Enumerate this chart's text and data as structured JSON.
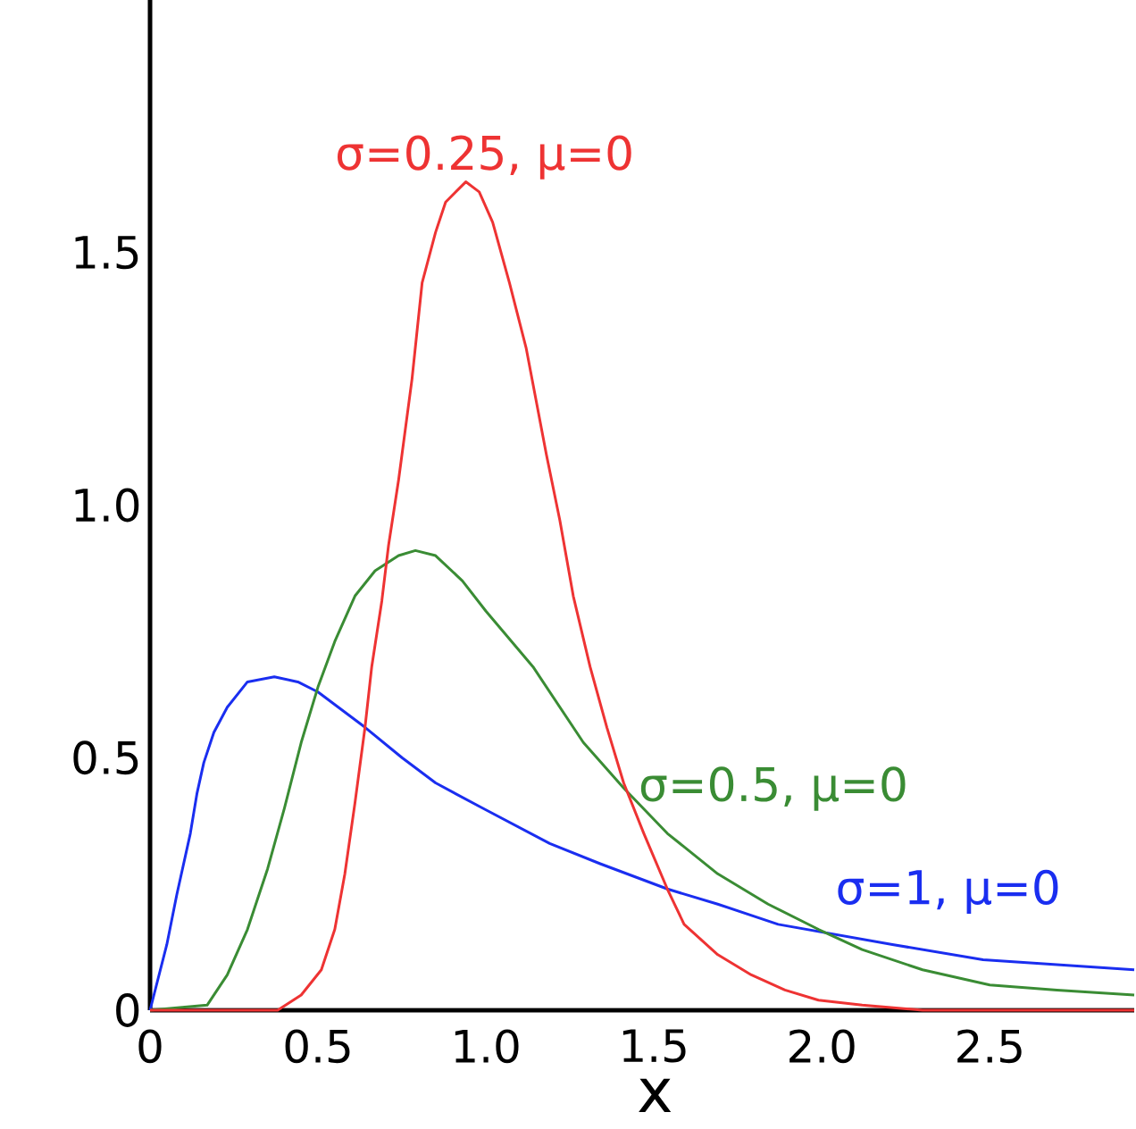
{
  "chart_data": {
    "type": "line",
    "xlabel": "x",
    "xlim": [
      0,
      2.93
    ],
    "ylim": [
      0,
      2.0
    ],
    "xticks": [
      0,
      0.5,
      {
        "value": 1,
        "label": "1.0"
      },
      1.5,
      {
        "value": 2,
        "label": "2.0"
      },
      2.5
    ],
    "yticks": [
      0,
      0.5,
      {
        "value": 1,
        "label": "1.0"
      },
      1.5
    ],
    "series": [
      {
        "name": "σ=0.25, μ=0",
        "color": "#ee3333",
        "x": [
          0,
          0.38,
          0.45,
          0.51,
          0.55,
          0.58,
          0.61,
          0.64,
          0.66,
          0.69,
          0.71,
          0.74,
          0.78,
          0.81,
          0.85,
          0.88,
          0.94,
          0.98,
          1.02,
          1.07,
          1.12,
          1.18,
          1.22,
          1.26,
          1.31,
          1.36,
          1.41,
          1.47,
          1.54,
          1.59,
          1.69,
          1.79,
          1.89,
          1.99,
          2.12,
          2.3,
          2.93
        ],
        "values": [
          0,
          0,
          0.03,
          0.08,
          0.16,
          0.27,
          0.41,
          0.56,
          0.68,
          0.81,
          0.92,
          1.05,
          1.25,
          1.44,
          1.54,
          1.6,
          1.64,
          1.62,
          1.56,
          1.44,
          1.31,
          1.1,
          0.97,
          0.82,
          0.68,
          0.56,
          0.45,
          0.35,
          0.24,
          0.17,
          0.11,
          0.07,
          0.04,
          0.02,
          0.01,
          0,
          0
        ]
      },
      {
        "name": "σ=0.5, μ=0",
        "color": "#3a8c34",
        "x": [
          0,
          0.17,
          0.23,
          0.29,
          0.35,
          0.4,
          0.45,
          0.5,
          0.55,
          0.61,
          0.67,
          0.74,
          0.79,
          0.85,
          0.93,
          1.0,
          1.14,
          1.29,
          1.41,
          1.54,
          1.69,
          1.84,
          1.99,
          2.12,
          2.3,
          2.5,
          2.7,
          2.93
        ],
        "values": [
          0,
          0.01,
          0.07,
          0.16,
          0.28,
          0.4,
          0.53,
          0.64,
          0.73,
          0.82,
          0.87,
          0.9,
          0.91,
          0.9,
          0.85,
          0.79,
          0.68,
          0.53,
          0.44,
          0.35,
          0.27,
          0.21,
          0.16,
          0.12,
          0.08,
          0.05,
          0.04,
          0.03
        ]
      },
      {
        "name": "σ=1, μ=0",
        "color": "#1a2ef0",
        "x": [
          0,
          0.05,
          0.08,
          0.12,
          0.14,
          0.16,
          0.19,
          0.23,
          0.29,
          0.37,
          0.44,
          0.5,
          0.64,
          0.75,
          0.85,
          0.99,
          1.19,
          1.34,
          1.54,
          1.69,
          1.87,
          2.04,
          2.21,
          2.48,
          2.7,
          2.93
        ],
        "values": [
          0,
          0.13,
          0.23,
          0.35,
          0.43,
          0.49,
          0.55,
          0.6,
          0.65,
          0.66,
          0.65,
          0.63,
          0.56,
          0.5,
          0.45,
          0.4,
          0.33,
          0.29,
          0.24,
          0.21,
          0.17,
          0.15,
          0.13,
          0.1,
          0.09,
          0.08
        ]
      }
    ]
  }
}
